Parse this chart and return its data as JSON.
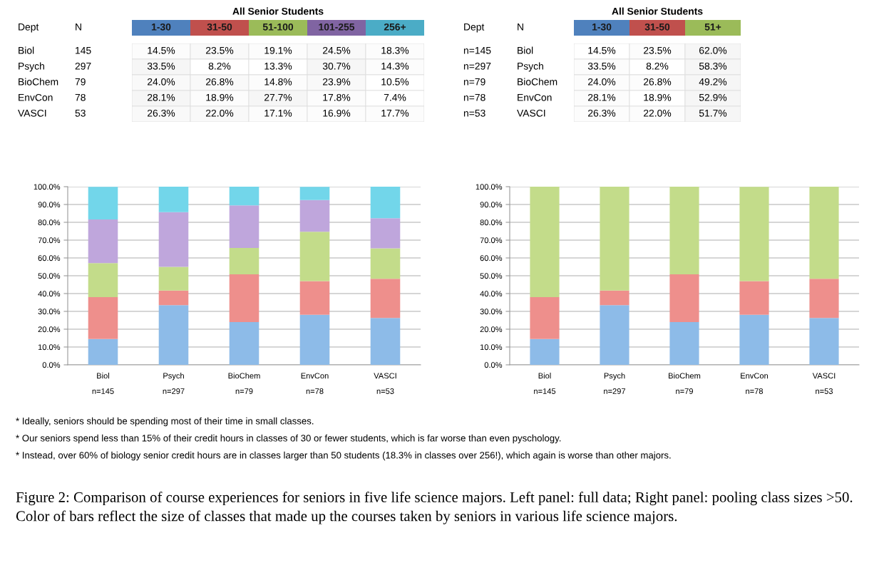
{
  "chart_data": [
    {
      "type": "heatmap",
      "title": "All Senior Students",
      "ylabel": "Dept",
      "y2label": "N",
      "categories": [
        "1-30",
        "31-50",
        "51-100",
        "101-255",
        "256+"
      ],
      "colors": [
        "#4f81bd",
        "#c0504d",
        "#9bbb59",
        "#8064a2",
        "#4bacc6"
      ],
      "y_categories": [
        "Biol",
        "Psych",
        "BioChem",
        "EnvCon",
        "VASCI"
      ],
      "y2_categories": [
        "145",
        "297",
        "79",
        "78",
        "53"
      ],
      "cells": [
        [
          14.5,
          23.5,
          19.1,
          24.5,
          18.3
        ],
        [
          33.5,
          8.2,
          13.3,
          30.7,
          14.3
        ],
        [
          24.0,
          26.8,
          14.8,
          23.9,
          10.5
        ],
        [
          28.1,
          18.9,
          27.7,
          17.8,
          7.4
        ],
        [
          26.3,
          22.0,
          17.1,
          16.9,
          17.7
        ]
      ],
      "cell_labels": [
        [
          "14.5%",
          "23.5%",
          "19.1%",
          "24.5%",
          "18.3%"
        ],
        [
          "33.5%",
          "8.2%",
          "13.3%",
          "30.7%",
          "14.3%"
        ],
        [
          "24.0%",
          "26.8%",
          "14.8%",
          "23.9%",
          "10.5%"
        ],
        [
          "28.1%",
          "18.9%",
          "27.7%",
          "17.8%",
          "7.4%"
        ],
        [
          "26.3%",
          "22.0%",
          "17.1%",
          "16.9%",
          "17.7%"
        ]
      ]
    },
    {
      "type": "heatmap",
      "title": "All Senior Students",
      "ylabel": "Dept",
      "y2label": "N",
      "categories": [
        "1-30",
        "31-50",
        "51+"
      ],
      "colors": [
        "#4f81bd",
        "#c0504d",
        "#9bbb59"
      ],
      "y_categories": [
        "Biol",
        "Psych",
        "BioChem",
        "EnvCon",
        "VASCI"
      ],
      "y2_categories": [
        "n=145",
        "n=297",
        "n=79",
        "n=78",
        "n=53"
      ],
      "cells": [
        [
          14.5,
          23.5,
          62.0
        ],
        [
          33.5,
          8.2,
          58.3
        ],
        [
          24.0,
          26.8,
          49.2
        ],
        [
          28.1,
          18.9,
          52.9
        ],
        [
          26.3,
          22.0,
          51.7
        ]
      ],
      "cell_labels": [
        [
          "14.5%",
          "23.5%",
          "62.0%"
        ],
        [
          "33.5%",
          "8.2%",
          "58.3%"
        ],
        [
          "24.0%",
          "26.8%",
          "49.2%"
        ],
        [
          "28.1%",
          "18.9%",
          "52.9%"
        ],
        [
          "26.3%",
          "22.0%",
          "51.7%"
        ]
      ]
    },
    {
      "type": "bar",
      "stacked": true,
      "grid": "y",
      "categories": [
        "Biol\nn=145",
        "Psych\nn=297",
        "BioChem\nn=79",
        "EnvCon\nn=78",
        "VASCI\nn=53"
      ],
      "series": [
        {
          "color": "#8dbbe8",
          "values": [
            14.5,
            33.5,
            24.0,
            28.1,
            26.3
          ]
        },
        {
          "color": "#ee8f8c",
          "values": [
            23.5,
            8.2,
            26.8,
            18.9,
            22.0
          ]
        },
        {
          "color": "#c3dc8a",
          "values": [
            19.1,
            13.3,
            14.8,
            27.7,
            17.1
          ]
        },
        {
          "color": "#bfa6dc",
          "values": [
            24.5,
            30.7,
            23.9,
            17.8,
            16.9
          ]
        },
        {
          "color": "#72d6ea",
          "values": [
            18.3,
            14.3,
            10.5,
            7.4,
            17.7
          ]
        }
      ],
      "ylim": [
        0,
        100
      ],
      "yticks": [
        {
          "value": 0,
          "label": "0.0%"
        },
        {
          "value": 10,
          "label": "10.0%"
        },
        {
          "value": 20,
          "label": "20.0%"
        },
        {
          "value": 30,
          "label": "30.0%"
        },
        {
          "value": 40,
          "label": "40.0%"
        },
        {
          "value": 50,
          "label": "50.0%"
        },
        {
          "value": 60,
          "label": "60.0%"
        },
        {
          "value": 70,
          "label": "70.0%"
        },
        {
          "value": 80,
          "label": "80.0%"
        },
        {
          "value": 90,
          "label": "90.0%"
        },
        {
          "value": 100,
          "label": "100.0%"
        }
      ],
      "annotations": [
        "* Ideally, seniors should be spending most of their time in small classes.",
        "* Our seniors spend less than 15% of their credit hours in classes of 30 or fewer students, which is far worse than even pyschology.",
        "* Instead, over 60% of biology senior credit hours are in classes larger than 50 students (18.3% in classes over 256!), which again is worse than other majors.",
        "Figure 2: Comparison of course experiences for seniors in five life science majors. Left panel: full data; Right panel: pooling class sizes >50. Color of bars reflect the size of classes that made up the courses taken by seniors in various life science majors."
      ]
    },
    {
      "type": "bar",
      "stacked": true,
      "grid": "y",
      "categories": [
        "Biol\nn=145",
        "Psych\nn=297",
        "BioChem\nn=79",
        "EnvCon\nn=78",
        "VASCI\nn=53"
      ],
      "series": [
        {
          "color": "#8dbbe8",
          "values": [
            14.5,
            33.5,
            24.0,
            28.1,
            26.3
          ]
        },
        {
          "color": "#ee8f8c",
          "values": [
            23.5,
            8.2,
            26.8,
            18.9,
            22.0
          ]
        },
        {
          "color": "#c3dc8a",
          "values": [
            62.0,
            58.3,
            49.2,
            52.9,
            51.7
          ]
        }
      ],
      "ylim": [
        0,
        100
      ],
      "yticks": [
        {
          "value": 0,
          "label": "0.0%"
        },
        {
          "value": 10,
          "label": "10.0%"
        },
        {
          "value": 20,
          "label": "20.0%"
        },
        {
          "value": 30,
          "label": "30.0%"
        },
        {
          "value": 40,
          "label": "40.0%"
        },
        {
          "value": 50,
          "label": "50.0%"
        },
        {
          "value": 60,
          "label": "60.0%"
        },
        {
          "value": 70,
          "label": "70.0%"
        },
        {
          "value": 80,
          "label": "80.0%"
        },
        {
          "value": 90,
          "label": "90.0%"
        },
        {
          "value": 100,
          "label": "100.0%"
        }
      ]
    }
  ]
}
